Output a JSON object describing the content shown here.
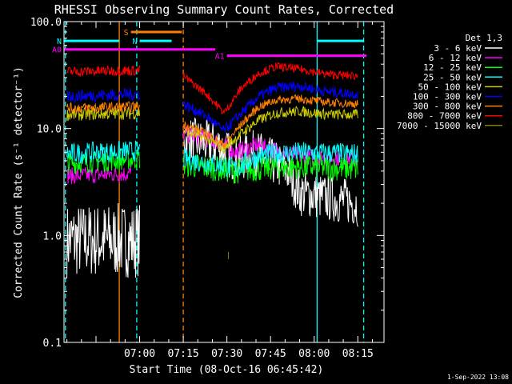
{
  "chart_data": {
    "type": "line",
    "title": "RHESSI Observing Summary Count Rates, Corrected",
    "xlabel": "Start Time (08-Oct-16 06:45:42)",
    "ylabel": "Corrected Count Rate (s⁻¹ detector⁻¹)",
    "y_scale": "log",
    "ylim": [
      0.1,
      100.0
    ],
    "y_ticks": [
      "0.1",
      "1.0",
      "10.0",
      "100.0"
    ],
    "xlim_minutes": [
      -11,
      99
    ],
    "x_ticks": [
      {
        "label": "07:00",
        "minute": 15
      },
      {
        "label": "07:15",
        "minute": 30
      },
      {
        "label": "07:30",
        "minute": 45
      },
      {
        "label": "07:45",
        "minute": 60
      },
      {
        "label": "08:00",
        "minute": 75
      },
      {
        "label": "08:15",
        "minute": 90
      }
    ],
    "legend_title": "Det 1,3",
    "legend_position": "right",
    "series": [
      {
        "name": "3 - 6 keV",
        "color": "#ffffff",
        "segments": [
          {
            "x": [
              -10,
              15
            ],
            "y": [
              0.9,
              0.9
            ],
            "noise": 0.35
          },
          {
            "x": [
              30,
              42,
              48,
              55,
              60,
              66,
              70,
              90
            ],
            "y": [
              8,
              7,
              5,
              6,
              5,
              4,
              2.5,
              2.0
            ],
            "noise": 0.22
          }
        ]
      },
      {
        "name": "6 - 12 keV",
        "color": "#ff00ff",
        "segments": [
          {
            "x": [
              -10,
              12
            ],
            "y": [
              3.6,
              3.8
            ],
            "noise": 0.08
          },
          {
            "x": [
              30,
              42,
              48,
              55,
              60,
              70,
              90
            ],
            "y": [
              9,
              7.5,
              6,
              7,
              6.5,
              5.5,
              5.2
            ],
            "noise": 0.08
          }
        ]
      },
      {
        "name": "12 - 25 keV",
        "color": "#00ff00",
        "segments": [
          {
            "x": [
              -10,
              15
            ],
            "y": [
              4.7,
              5.2
            ],
            "noise": 0.1
          },
          {
            "x": [
              30,
              42,
              48,
              55,
              60,
              70,
              90
            ],
            "y": [
              4.6,
              4.2,
              4.0,
              4.2,
              4.3,
              4.4,
              4.2
            ],
            "noise": 0.12
          }
        ]
      },
      {
        "name": "25 - 50 keV",
        "color": "#00ffff",
        "segments": [
          {
            "x": [
              -10,
              15
            ],
            "y": [
              5.8,
              6.2
            ],
            "noise": 0.1
          },
          {
            "x": [
              30,
              42,
              48,
              55,
              60,
              70,
              90
            ],
            "y": [
              5.2,
              4.6,
              4.2,
              5.4,
              5.8,
              6.0,
              5.8
            ],
            "noise": 0.1
          }
        ]
      },
      {
        "name": "50 - 100 keV",
        "color": "#cccc00",
        "segments": [
          {
            "x": [
              -10,
              15
            ],
            "y": [
              13.5,
              14
            ],
            "noise": 0.06
          },
          {
            "x": [
              30,
              38,
              44,
              50,
              56,
              62,
              70,
              80,
              90
            ],
            "y": [
              9.5,
              8,
              6.5,
              9,
              12,
              14,
              14.5,
              13.5,
              13.5
            ],
            "noise": 0.05
          }
        ]
      },
      {
        "name": "100 - 300 keV",
        "color": "#0000ff",
        "segments": [
          {
            "x": [
              -10,
              15
            ],
            "y": [
              20,
              21
            ],
            "noise": 0.06
          },
          {
            "x": [
              30,
              38,
              44,
              50,
              56,
              62,
              70,
              80,
              90
            ],
            "y": [
              17,
              13,
              9.5,
              14,
              20,
              24,
              25,
              22,
              21
            ],
            "noise": 0.05
          }
        ]
      },
      {
        "name": "300 - 800 keV",
        "color": "#ff8000",
        "segments": [
          {
            "x": [
              -10,
              15
            ],
            "y": [
              15.5,
              16
            ],
            "noise": 0.05
          },
          {
            "x": [
              30,
              38,
              44,
              50,
              56,
              62,
              70,
              80,
              90
            ],
            "y": [
              11,
              9,
              7,
              11,
              16,
              18.5,
              19,
              17.5,
              17
            ],
            "noise": 0.04
          }
        ]
      },
      {
        "name": "800 - 7000 keV",
        "color": "#ff0000",
        "segments": [
          {
            "x": [
              -10,
              15
            ],
            "y": [
              34,
              35
            ],
            "noise": 0.05
          },
          {
            "x": [
              30,
              38,
              44,
              50,
              56,
              62,
              70,
              80,
              90
            ],
            "y": [
              31,
              21,
              14,
              24,
              33,
              38,
              36,
              32,
              31
            ],
            "noise": 0.04
          }
        ]
      },
      {
        "name": "7000 - 15000 keV",
        "color": "#808000",
        "segments": [
          {
            "x": [
              45.5,
              45.5
            ],
            "y": [
              0.6,
              0.7
            ],
            "noise": 0
          }
        ]
      }
    ],
    "vertical_lines": [
      {
        "minute": -10.5,
        "color": "#00ffff",
        "style": "dashed"
      },
      {
        "minute": 8,
        "color": "#ff8000",
        "style": "solid"
      },
      {
        "minute": 14,
        "color": "#00ffff",
        "style": "dashed"
      },
      {
        "minute": 30,
        "color": "#ff8000",
        "style": "dashed"
      },
      {
        "minute": 76,
        "color": "#00ffff",
        "style": "solid"
      },
      {
        "minute": 92,
        "color": "#00ffff",
        "style": "dashed"
      }
    ],
    "annotations": [
      {
        "label": "S",
        "color": "#ff8000",
        "y": 80,
        "x_start": 12,
        "x_end": 29.5
      },
      {
        "label": "N",
        "color": "#00ffff",
        "y": 66,
        "x_start": -11,
        "x_end": 8
      },
      {
        "label": "N",
        "color": "#00ffff",
        "y": 66,
        "x_start": 15,
        "x_end": 26
      },
      {
        "label": "",
        "color": "#00ffff",
        "y": 66,
        "x_start": 76,
        "x_end": 92
      },
      {
        "label": "A0",
        "color": "#ff00ff",
        "y": 55,
        "x_start": -11,
        "x_end": 41
      },
      {
        "label": "A1",
        "color": "#ff00ff",
        "y": 48,
        "x_start": 45,
        "x_end": 93
      }
    ]
  },
  "footer_date": "1-Sep-2022 13:08"
}
